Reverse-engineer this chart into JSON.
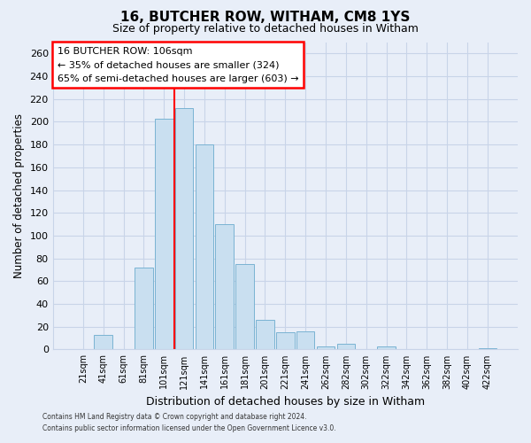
{
  "title": "16, BUTCHER ROW, WITHAM, CM8 1YS",
  "subtitle": "Size of property relative to detached houses in Witham",
  "xlabel": "Distribution of detached houses by size in Witham",
  "ylabel": "Number of detached properties",
  "bar_labels": [
    "21sqm",
    "41sqm",
    "61sqm",
    "81sqm",
    "101sqm",
    "121sqm",
    "141sqm",
    "161sqm",
    "181sqm",
    "201sqm",
    "221sqm",
    "241sqm",
    "262sqm",
    "282sqm",
    "302sqm",
    "322sqm",
    "342sqm",
    "362sqm",
    "382sqm",
    "402sqm",
    "422sqm"
  ],
  "bar_values": [
    0,
    13,
    0,
    72,
    203,
    212,
    180,
    110,
    75,
    26,
    15,
    16,
    3,
    5,
    0,
    3,
    0,
    0,
    0,
    0,
    1
  ],
  "bar_color": "#c9dff0",
  "bar_edge_color": "#7ab3d3",
  "ylim": [
    0,
    270
  ],
  "yticks": [
    0,
    20,
    40,
    60,
    80,
    100,
    120,
    140,
    160,
    180,
    200,
    220,
    240,
    260
  ],
  "red_line_x": 4.5,
  "annotation_title": "16 BUTCHER ROW: 106sqm",
  "annotation_line1": "← 35% of detached houses are smaller (324)",
  "annotation_line2": "65% of semi-detached houses are larger (603) →",
  "footer1": "Contains HM Land Registry data © Crown copyright and database right 2024.",
  "footer2": "Contains public sector information licensed under the Open Government Licence v3.0.",
  "background_color": "#e8eef8",
  "plot_bg_color": "#e8eef8",
  "grid_color": "#c8d4e8"
}
